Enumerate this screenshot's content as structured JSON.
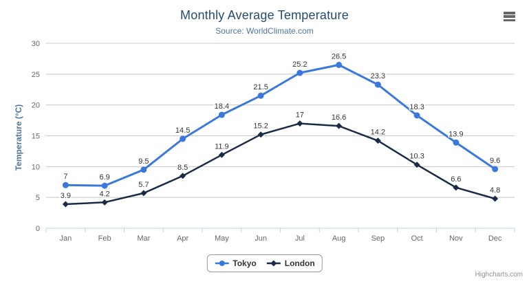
{
  "header": {
    "title": "Monthly Average Temperature",
    "subtitle": "Source: WorldClimate.com"
  },
  "chart_data": {
    "type": "line",
    "title": "Monthly Average Temperature",
    "subtitle": "Source: WorldClimate.com",
    "categories": [
      "Jan",
      "Feb",
      "Mar",
      "Apr",
      "May",
      "Jun",
      "Jul",
      "Aug",
      "Sep",
      "Oct",
      "Nov",
      "Dec"
    ],
    "series": [
      {
        "name": "Tokyo",
        "color": "#3B78DC",
        "marker": "circle",
        "values": [
          7.0,
          6.9,
          9.5,
          14.5,
          18.4,
          21.5,
          25.2,
          26.5,
          23.3,
          18.3,
          13.9,
          9.6
        ]
      },
      {
        "name": "London",
        "color": "#1A2B45",
        "marker": "diamond",
        "values": [
          3.9,
          4.2,
          5.7,
          8.5,
          11.9,
          15.2,
          17.0,
          16.6,
          14.2,
          10.3,
          6.6,
          4.8
        ]
      }
    ],
    "xlabel": "",
    "ylabel": "Temperature (°C)",
    "ylim": [
      0,
      30
    ],
    "yticks": [
      0,
      5,
      10,
      15,
      20,
      25,
      30
    ],
    "grid": true,
    "data_labels": true,
    "legend_position": "bottom-center"
  },
  "theme": {
    "title_color": "#274b6d",
    "subtitle_color": "#4d759e",
    "axis_title_color": "#4d759e",
    "tick_label_color": "#666666",
    "data_label_color": "#333333",
    "gridline_color": "#c8c8c8",
    "axis_line_color": "#c0d0e0",
    "legend_text_color": "#333333",
    "menu_icon_color": "#666666",
    "credits_color": "#909090",
    "background": "#ffffff"
  },
  "legend": {
    "items": [
      "Tokyo",
      "London"
    ]
  },
  "credits": {
    "label": "Highcharts.com"
  },
  "toolbar": {
    "menu_icon": "hamburger-menu-icon"
  }
}
